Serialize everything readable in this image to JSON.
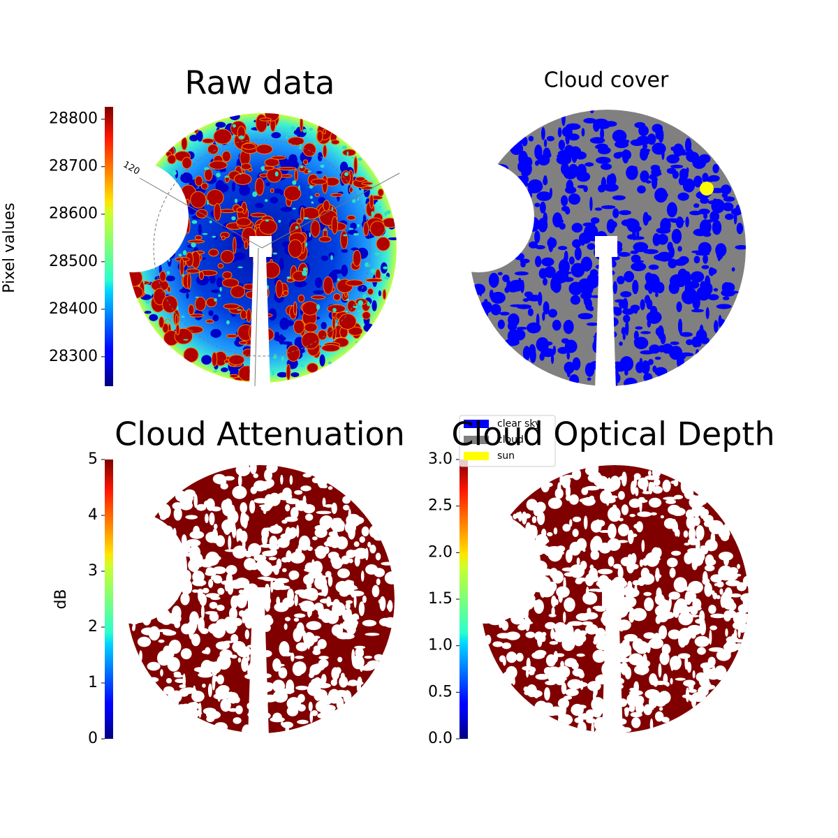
{
  "chart_data": [
    {
      "type": "image",
      "title": "Raw data",
      "colormap": "jet",
      "colorbar_label": "Pixel values",
      "clim": [
        28238,
        28826
      ],
      "cticks": [
        28300,
        28400,
        28500,
        28600,
        28700,
        28800
      ],
      "annotations": [
        "120"
      ]
    },
    {
      "type": "image",
      "title": "Cloud cover",
      "series": [
        {
          "name": "clear sky",
          "color": "#0000ff"
        },
        {
          "name": "cloud",
          "color": "#808080"
        },
        {
          "name": "sun",
          "color": "#ffff00"
        }
      ]
    },
    {
      "type": "image",
      "title": "Cloud Attenuation",
      "colormap": "jet",
      "colorbar_label": "dB",
      "clim": [
        0,
        5
      ],
      "cticks": [
        0,
        1,
        2,
        3,
        4,
        5
      ],
      "color": "#800000"
    },
    {
      "type": "image",
      "title": "Cloud Optical Depth",
      "colormap": "jet",
      "clim": [
        0,
        3
      ],
      "cticks": [
        {
          "value": 0,
          "label": "0.0"
        },
        0.5,
        {
          "value": 1,
          "label": "1.0"
        },
        1.5,
        {
          "value": 2,
          "label": "2.0"
        },
        2.5,
        {
          "value": 3,
          "label": "3.0"
        }
      ],
      "color": "#800000"
    }
  ]
}
